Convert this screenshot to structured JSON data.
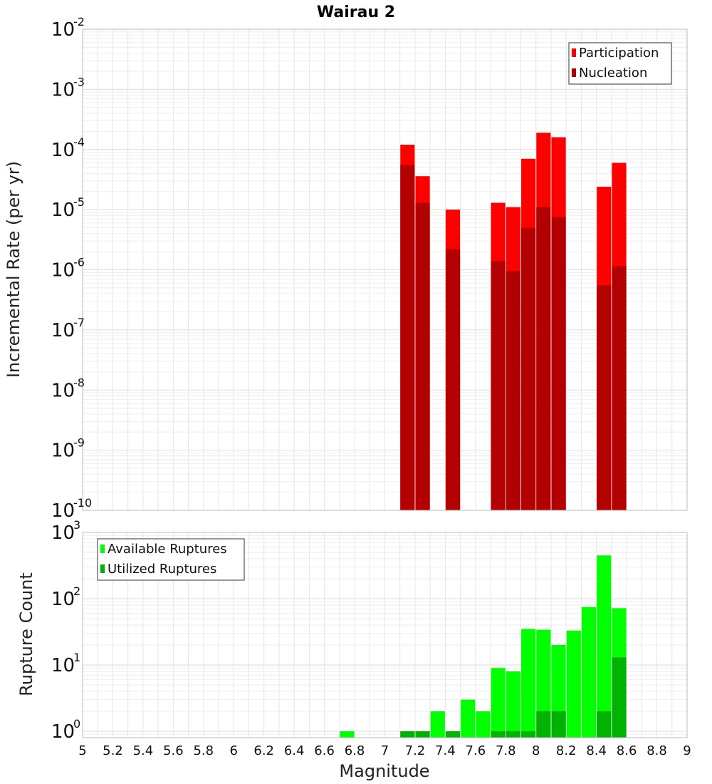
{
  "title": "Wairau 2",
  "colors": {
    "participation": "#ff0000",
    "nucleation": "#b30000",
    "available": "#00ff00",
    "utilized": "#00b300",
    "grid": "#e6e6e6",
    "frame": "#bbbbbb"
  },
  "chart_data": [
    {
      "type": "bar",
      "title": "Wairau 2",
      "xlabel": "Magnitude",
      "ylabel": "Incremental Rate (per yr)",
      "yscale": "log",
      "xlim": [
        5,
        9
      ],
      "ylim": [
        1e-10,
        0.01
      ],
      "ytick_exponents": [
        -10,
        -9,
        -8,
        -7,
        -6,
        -5,
        -4,
        -3,
        -2
      ],
      "legend": "top-right",
      "grid": true,
      "bar_width": 0.095,
      "series": [
        {
          "name": "Participation",
          "color": "#ff0000",
          "x": [
            7.15,
            7.25,
            7.45,
            7.75,
            7.85,
            7.95,
            8.05,
            8.15,
            8.45,
            8.55
          ],
          "values": [
            0.00012,
            3.6e-05,
            1e-05,
            1.3e-05,
            1.1e-05,
            7e-05,
            0.00019,
            0.00016,
            2.4e-05,
            6e-05
          ]
        },
        {
          "name": "Nucleation",
          "color": "#b30000",
          "x": [
            7.15,
            7.25,
            7.45,
            7.75,
            7.85,
            7.95,
            8.05,
            8.15,
            8.45,
            8.55
          ],
          "values": [
            5.5e-05,
            1.3e-05,
            2.2e-06,
            1.4e-06,
            9.5e-07,
            5e-06,
            1.1e-05,
            7.5e-06,
            5.5e-07,
            1.15e-06
          ]
        }
      ]
    },
    {
      "type": "bar",
      "xlabel": "Magnitude",
      "ylabel": "Rupture Count",
      "yscale": "log",
      "xlim": [
        5,
        9
      ],
      "ylim": [
        0.8,
        1000
      ],
      "ytick_exponents": [
        0,
        1,
        2,
        3
      ],
      "legend": "top-left",
      "grid": true,
      "bar_width": 0.095,
      "series": [
        {
          "name": "Available Ruptures",
          "color": "#00ff00",
          "x": [
            6.75,
            7.15,
            7.25,
            7.35,
            7.45,
            7.55,
            7.65,
            7.75,
            7.85,
            7.95,
            8.05,
            8.15,
            8.25,
            8.35,
            8.45,
            8.55
          ],
          "values": [
            1,
            1,
            1,
            2,
            1,
            3,
            2,
            9,
            8,
            35,
            34,
            20,
            33,
            75,
            450,
            72
          ]
        },
        {
          "name": "Utilized Ruptures",
          "color": "#00b300",
          "x": [
            7.15,
            7.25,
            7.45,
            7.75,
            7.85,
            7.95,
            8.05,
            8.15,
            8.45,
            8.55
          ],
          "values": [
            1,
            1,
            1,
            1,
            1,
            1,
            2,
            2,
            2,
            13
          ]
        }
      ]
    }
  ],
  "x_ticks": [
    "5",
    "5.2",
    "5.4",
    "5.6",
    "5.8",
    "6",
    "6.2",
    "6.4",
    "6.6",
    "6.8",
    "7",
    "7.2",
    "7.4",
    "7.6",
    "7.8",
    "8",
    "8.2",
    "8.4",
    "8.6",
    "8.8",
    "9"
  ]
}
